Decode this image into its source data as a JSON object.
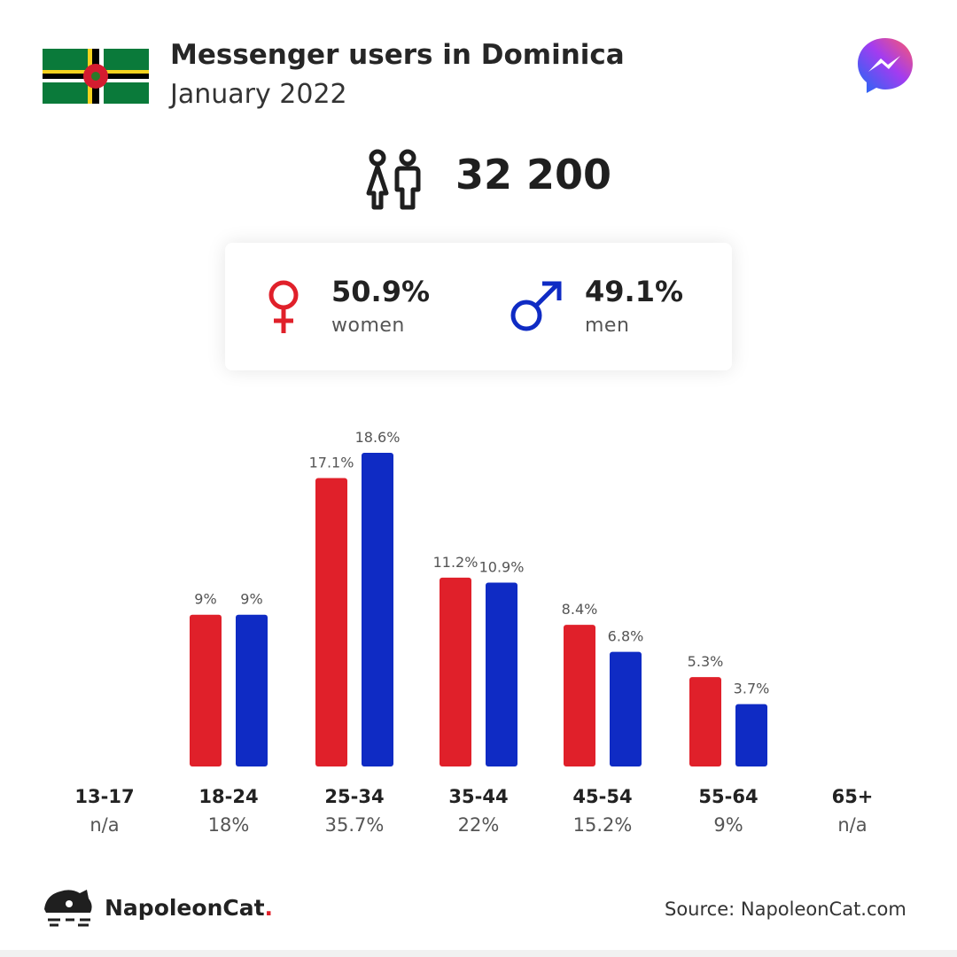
{
  "header": {
    "title": "Messenger users in Dominica",
    "subtitle": "January 2022",
    "flag_icon": "dominica-flag-icon",
    "logo_icon": "messenger-logo-icon"
  },
  "total": {
    "value": "32 200",
    "icon": "people-icon"
  },
  "gender": {
    "women": {
      "pct": "50.9%",
      "label": "women",
      "icon": "female-symbol-icon",
      "color": "#e0202a"
    },
    "men": {
      "pct": "49.1%",
      "label": "men",
      "icon": "male-symbol-icon",
      "color": "#0f2bc4"
    }
  },
  "chart_data": {
    "type": "bar",
    "categories": [
      "13-17",
      "18-24",
      "25-34",
      "35-44",
      "45-54",
      "55-64",
      "65+"
    ],
    "category_totals": [
      "n/a",
      "18%",
      "35.7%",
      "22%",
      "15.2%",
      "9%",
      "n/a"
    ],
    "series": [
      {
        "values": [
          null,
          9,
          17.1,
          11.2,
          8.4,
          5.3,
          null
        ],
        "labels": [
          "",
          "9%",
          "17.1%",
          "11.2%",
          "8.4%",
          "5.3%",
          ""
        ],
        "color": "#e0202a"
      },
      {
        "values": [
          null,
          9,
          18.6,
          10.9,
          6.8,
          3.7,
          null
        ],
        "labels": [
          "",
          "9%",
          "18.6%",
          "10.9%",
          "6.8%",
          "3.7%",
          ""
        ],
        "color": "#0f2bc4"
      }
    ],
    "ylim": [
      0,
      18.6
    ],
    "grid": false,
    "title": "",
    "xlabel": "",
    "ylabel": ""
  },
  "footer": {
    "brand": "NapoleonCat",
    "brand_dot": ".",
    "brand_icon": "napoleoncat-logo-icon",
    "source": "Source: NapoleonCat.com"
  }
}
